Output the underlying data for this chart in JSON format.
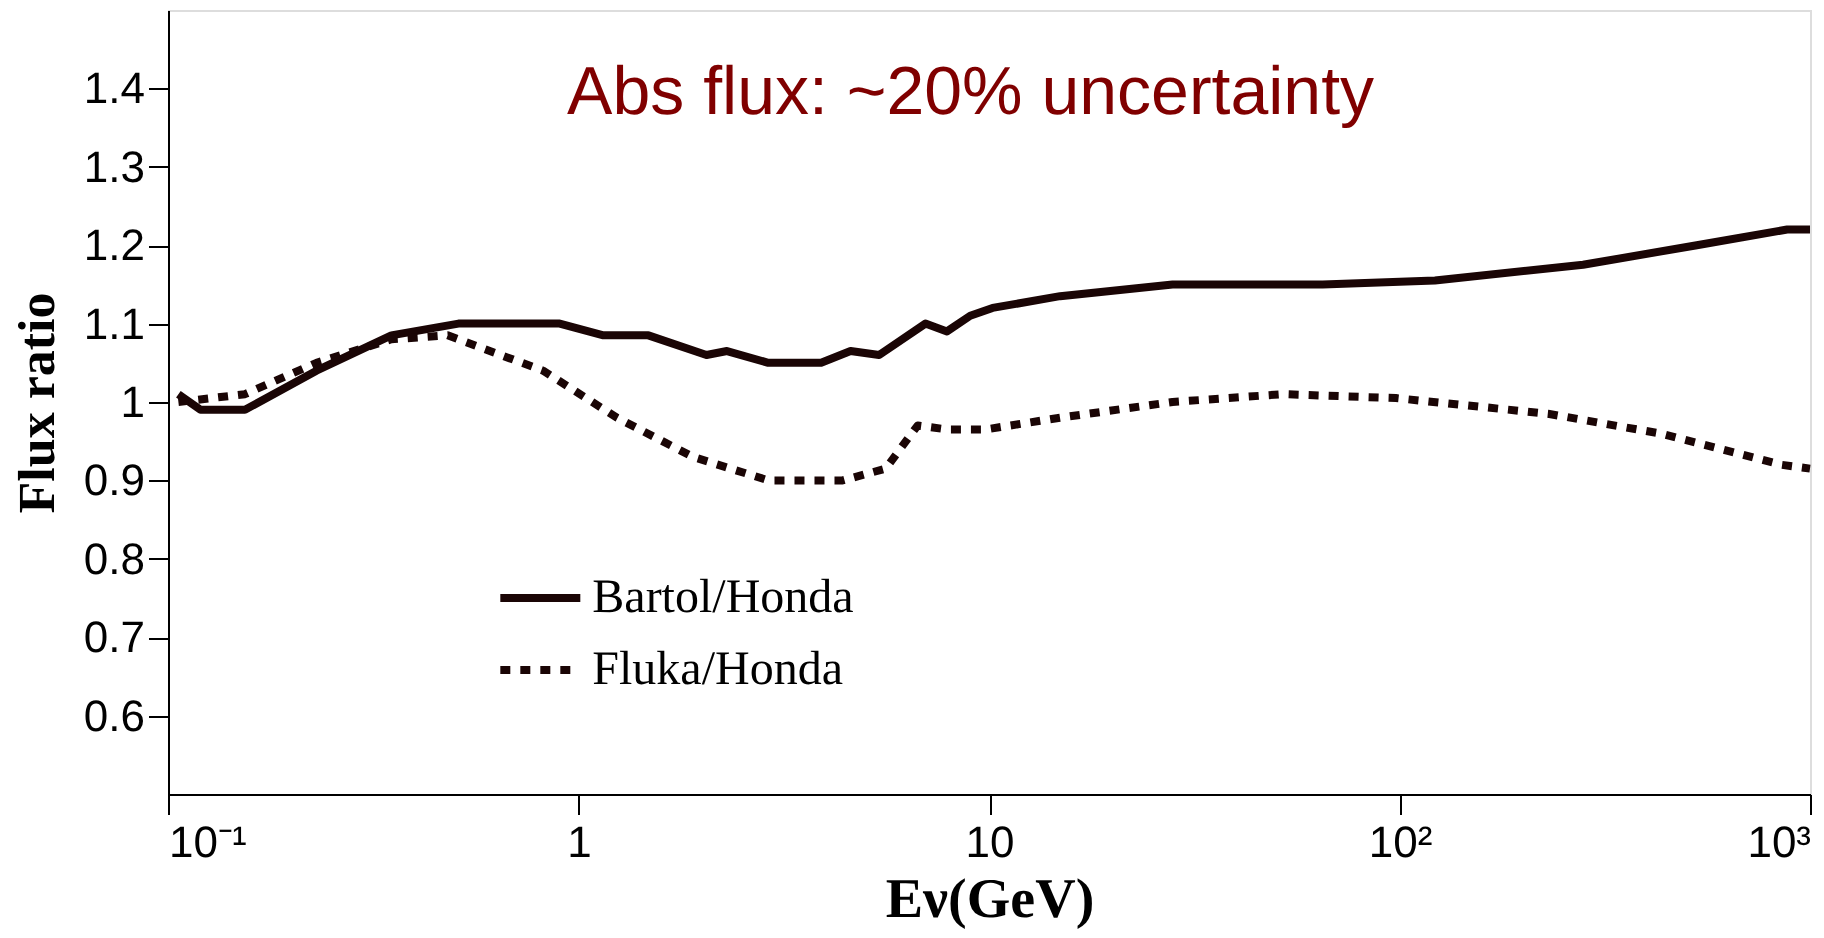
{
  "chart_data": {
    "type": "line",
    "xlabel": "Eν(GeV)",
    "ylabel": "Flux ratio",
    "log": "x",
    "grid": false,
    "legend": "bottom",
    "marker": "none",
    "xlim": [
      0.1,
      1000
    ],
    "xticks": [
      {
        "value": 0.1,
        "label": "10⁻¹"
      },
      1,
      10,
      {
        "value": 100,
        "label": "10²"
      },
      {
        "value": 1000,
        "label": "10³"
      }
    ],
    "ylim": [
      0.5,
      1.5
    ],
    "yticks": [
      0.6,
      0.7,
      0.8,
      0.9,
      1,
      1.1,
      1.2,
      1.3,
      1.4
    ],
    "annotations": [
      "Abs flux: ~20% uncertainty"
    ],
    "series": [
      {
        "name": "Bartol/Honda",
        "color": "#1a0505",
        "line_style": "solid",
        "x": [
          0.106,
          0.12,
          0.154,
          0.23,
          0.35,
          0.51,
          0.9,
          1.15,
          1.48,
          2.05,
          2.3,
          2.9,
          3.9,
          4.6,
          5.4,
          7.0,
          7.9,
          9.0,
          10.2,
          14.9,
          28,
          65,
          122,
          280,
          530,
          880,
          1000
        ],
        "values": [
          1.01,
          0.99,
          0.99,
          1.04,
          1.085,
          1.1,
          1.1,
          1.085,
          1.085,
          1.06,
          1.065,
          1.05,
          1.05,
          1.065,
          1.06,
          1.1,
          1.09,
          1.11,
          1.12,
          1.135,
          1.15,
          1.15,
          1.155,
          1.175,
          1.2,
          1.22,
          1.22
        ]
      },
      {
        "name": "Fluka/Honda",
        "color": "#1a0505",
        "line_style": "dotted",
        "x": [
          0.106,
          0.154,
          0.23,
          0.35,
          0.48,
          0.82,
          1.24,
          1.9,
          2.9,
          4.4,
          5.6,
          6.7,
          7.9,
          9.8,
          14.9,
          28,
          52,
          98,
          230,
          430,
          850,
          1000
        ],
        "values": [
          1.0,
          1.01,
          1.05,
          1.08,
          1.085,
          1.04,
          0.98,
          0.93,
          0.9,
          0.9,
          0.915,
          0.97,
          0.965,
          0.965,
          0.98,
          1.0,
          1.01,
          1.005,
          0.985,
          0.96,
          0.92,
          0.915
        ]
      }
    ]
  }
}
